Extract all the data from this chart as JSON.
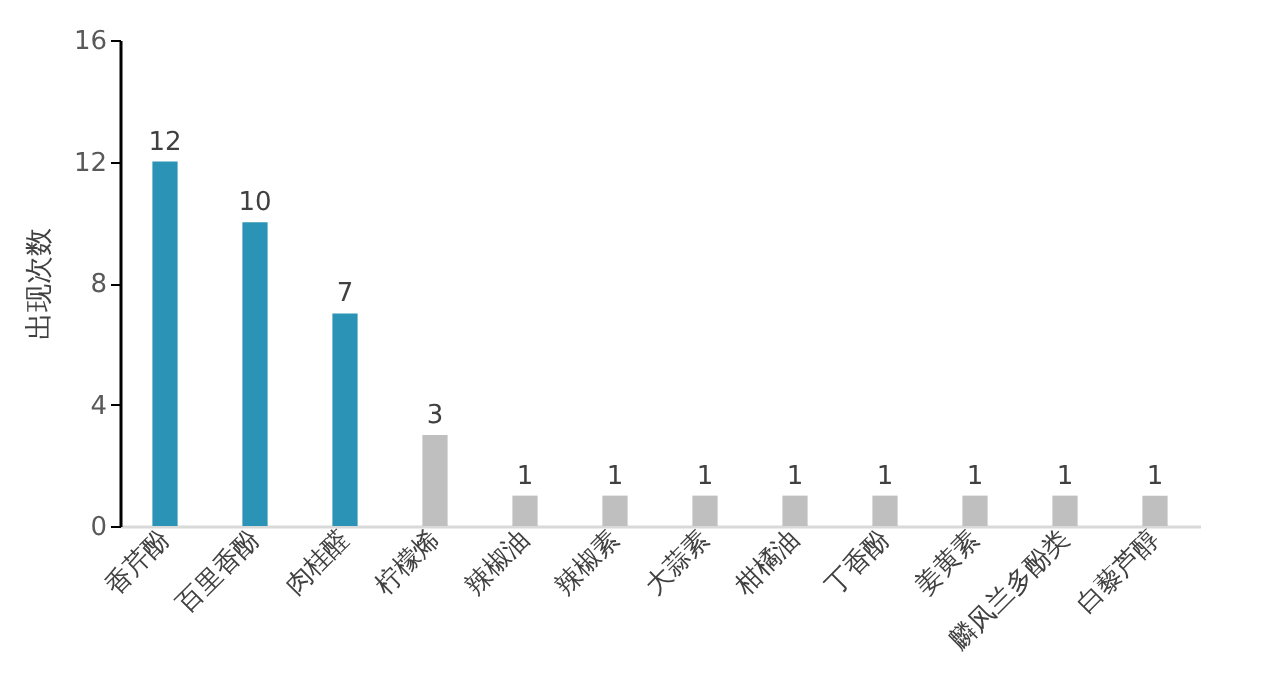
{
  "chart_data": {
    "type": "bar",
    "ylabel": "出现次数",
    "categories": [
      "香芹酚",
      "百里香酚",
      "肉桂醛",
      "柠檬烯",
      "辣椒油",
      "辣椒素",
      "大蒜素",
      "柑橘油",
      "丁香酚",
      "姜黄素",
      "麟风兰多酚类",
      "白藜芦醇"
    ],
    "values": [
      12,
      10,
      7,
      3,
      1,
      1,
      1,
      1,
      1,
      1,
      1,
      1
    ],
    "colors": [
      "#2b93b5",
      "#2b93b5",
      "#2b93b5",
      "#bfbfbf",
      "#bfbfbf",
      "#bfbfbf",
      "#bfbfbf",
      "#bfbfbf",
      "#bfbfbf",
      "#bfbfbf",
      "#bfbfbf",
      "#bfbfbf"
    ],
    "ylim": [
      0,
      16
    ],
    "yticks": [
      0,
      4,
      8,
      12,
      16
    ],
    "grid": false,
    "data_labels": true
  }
}
